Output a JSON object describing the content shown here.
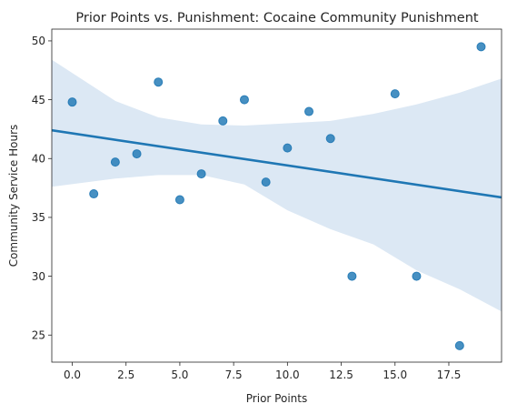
{
  "chart_data": {
    "type": "scatter",
    "title": "Prior Points vs. Punishment: Cocaine Community Punishment",
    "xlabel": "Prior Points",
    "ylabel": "Community Service Hours",
    "xlim": [
      -0.95,
      19.95
    ],
    "ylim": [
      22.7,
      51.0
    ],
    "x_ticks": [
      0,
      2.5,
      5,
      7.5,
      10,
      12.5,
      15,
      17.5
    ],
    "x_tick_labels": [
      "0.0",
      "2.5",
      "5.0",
      "7.5",
      "10.0",
      "12.5",
      "15.0",
      "17.5"
    ],
    "y_ticks": [
      25,
      30,
      35,
      40,
      45,
      50
    ],
    "y_tick_labels": [
      "25",
      "30",
      "35",
      "40",
      "45",
      "50"
    ],
    "grid": false,
    "legend": "none",
    "points": [
      {
        "x": 0,
        "y": 44.8
      },
      {
        "x": 1,
        "y": 37.0
      },
      {
        "x": 2,
        "y": 39.7
      },
      {
        "x": 3,
        "y": 40.4
      },
      {
        "x": 4,
        "y": 46.5
      },
      {
        "x": 5,
        "y": 36.5
      },
      {
        "x": 6,
        "y": 38.7
      },
      {
        "x": 7,
        "y": 43.2
      },
      {
        "x": 8,
        "y": 45.0
      },
      {
        "x": 9,
        "y": 38.0
      },
      {
        "x": 10,
        "y": 40.9
      },
      {
        "x": 11,
        "y": 44.0
      },
      {
        "x": 12,
        "y": 41.7
      },
      {
        "x": 13,
        "y": 30.0
      },
      {
        "x": 15,
        "y": 45.5
      },
      {
        "x": 16,
        "y": 30.0
      },
      {
        "x": 18,
        "y": 24.1
      },
      {
        "x": 19,
        "y": 49.5
      }
    ],
    "regression_line": {
      "x": [
        -0.95,
        19.95
      ],
      "y": [
        42.4,
        36.7
      ]
    },
    "confidence_band": {
      "x": [
        -0.95,
        2,
        4,
        6,
        8,
        10,
        12,
        14,
        16,
        18,
        19.95
      ],
      "upper": [
        48.4,
        44.9,
        43.5,
        42.9,
        42.8,
        43.0,
        43.2,
        43.8,
        44.6,
        45.6,
        46.8
      ],
      "lower": [
        37.6,
        38.3,
        38.6,
        38.6,
        37.8,
        35.6,
        34.0,
        32.7,
        30.5,
        28.9,
        27.0
      ]
    },
    "colors": {
      "point": "#1f77b4",
      "line": "#1f77b4",
      "band": "#dce8f4"
    }
  }
}
